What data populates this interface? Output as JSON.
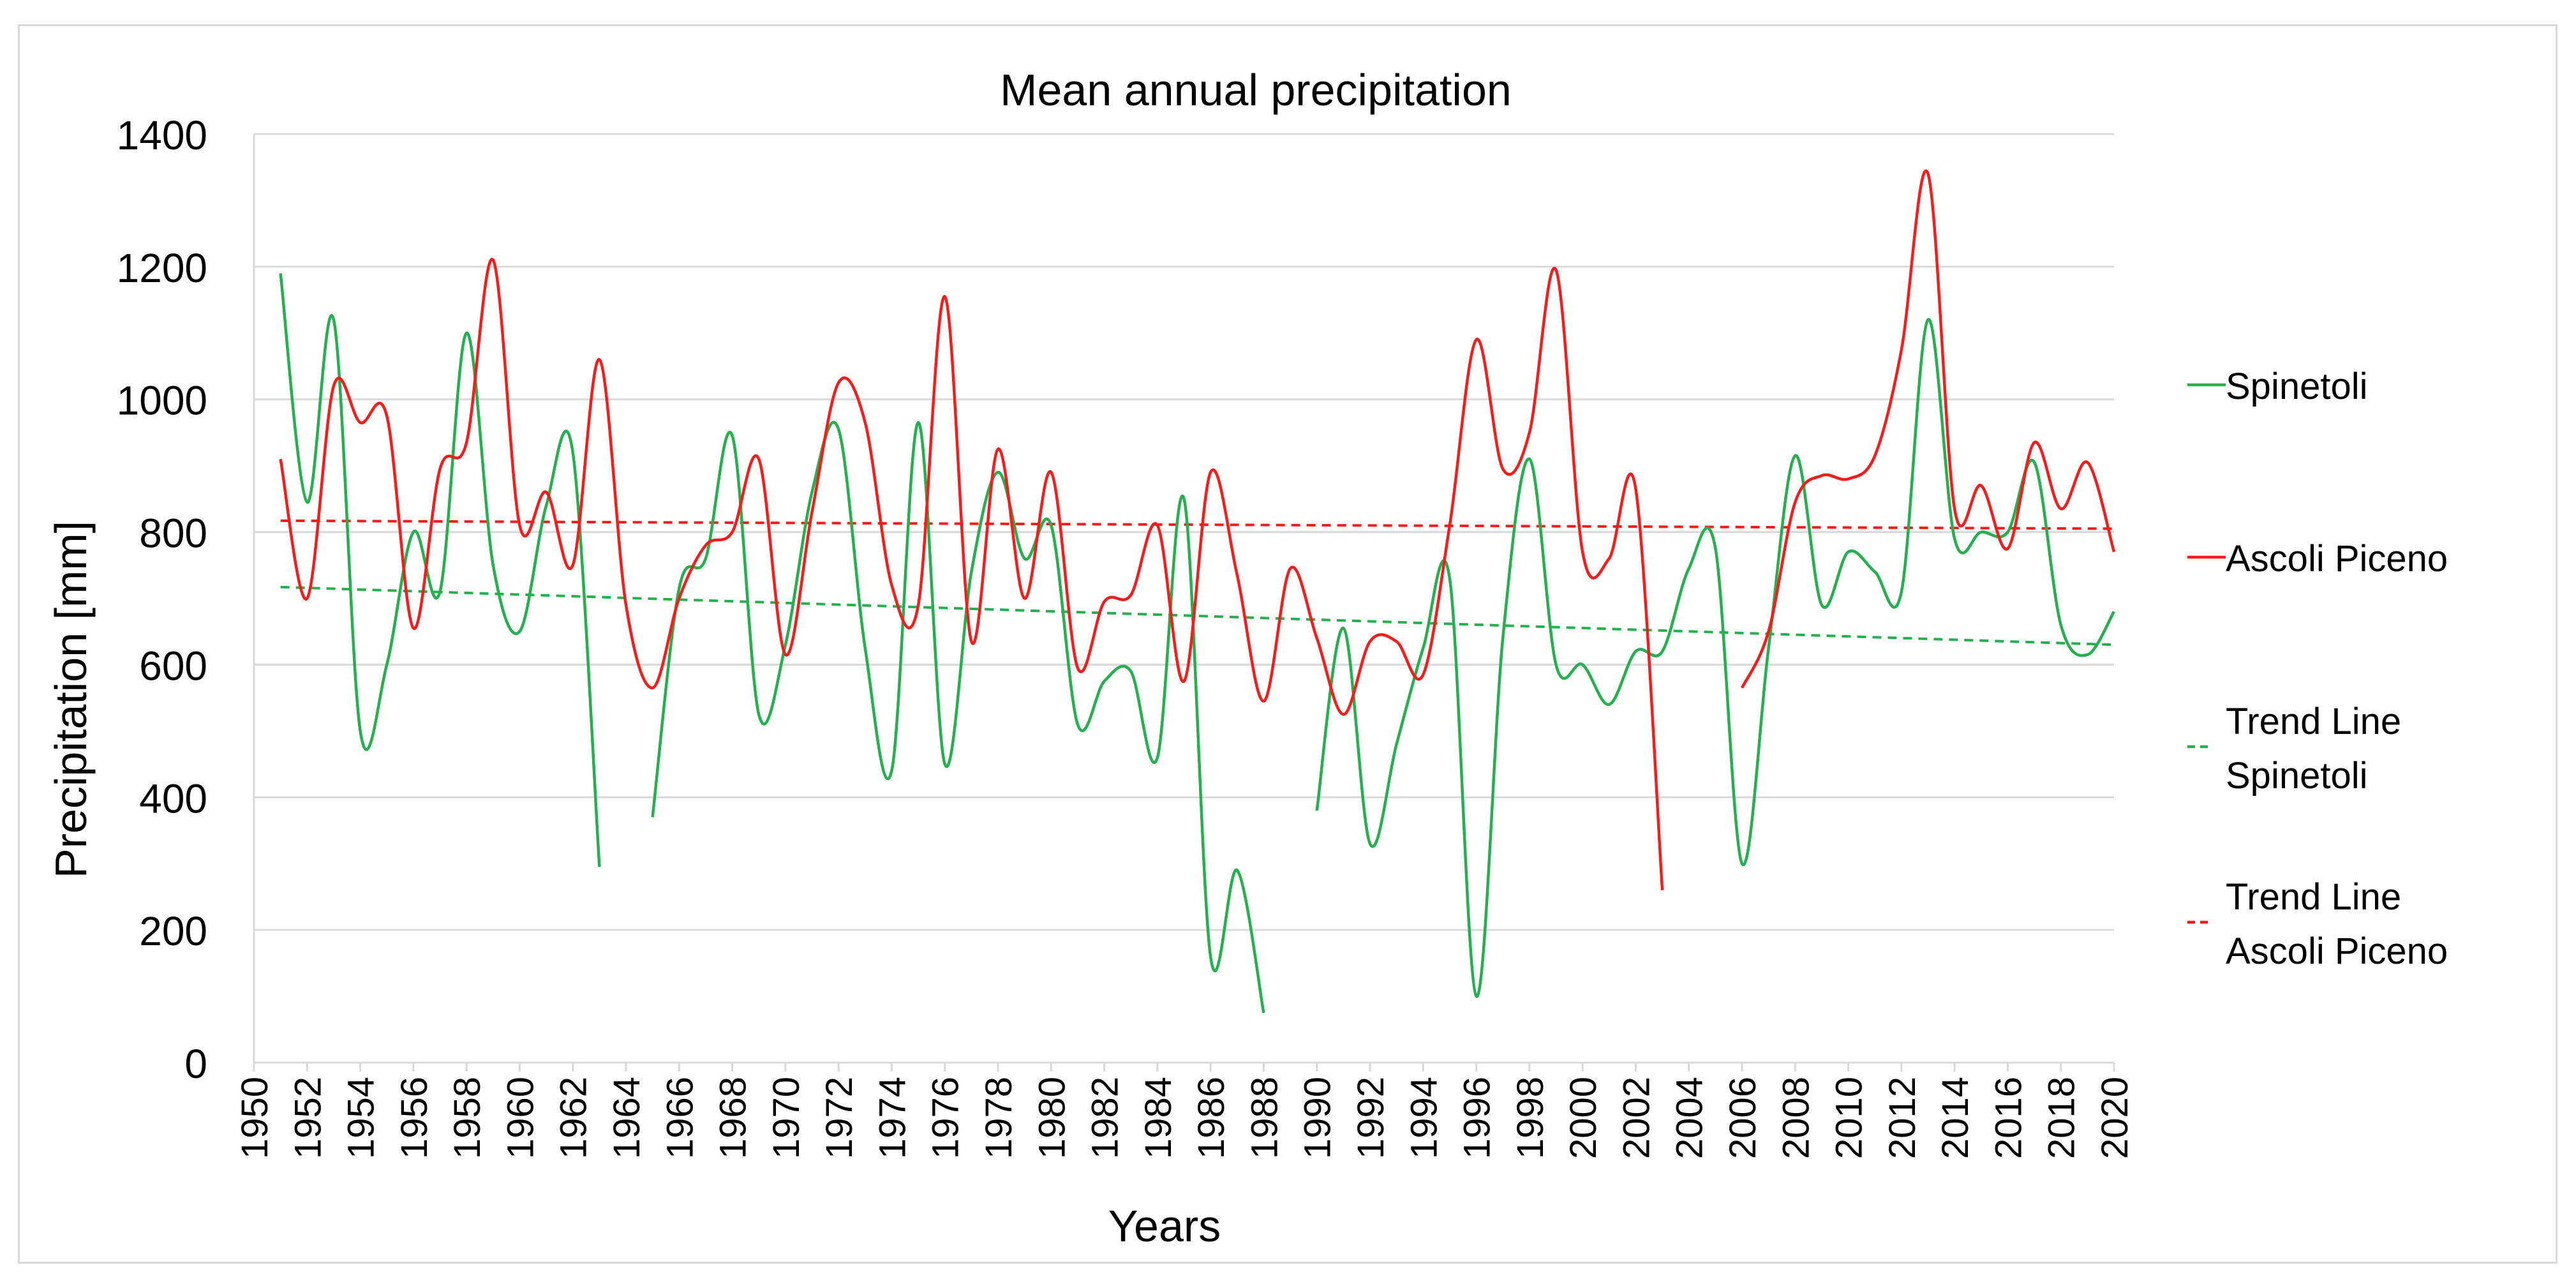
{
  "chart_data": {
    "type": "line",
    "title": "Mean annual precipitation",
    "xlabel": "Years",
    "ylabel": "Precipitation [mm]",
    "xlim": [
      1950,
      2020
    ],
    "ylim": [
      0,
      1400
    ],
    "x_ticks": [
      "1950",
      "1952",
      "1954",
      "1956",
      "1958",
      "1960",
      "1962",
      "1964",
      "1966",
      "1968",
      "1970",
      "1972",
      "1974",
      "1976",
      "1978",
      "1980",
      "1982",
      "1984",
      "1986",
      "1988",
      "1990",
      "1992",
      "1994",
      "1996",
      "1998",
      "2000",
      "2002",
      "2004",
      "2006",
      "2008",
      "2010",
      "2012",
      "2014",
      "2016",
      "2018",
      "2020"
    ],
    "y_ticks": [
      "0",
      "200",
      "400",
      "600",
      "800",
      "1000",
      "1200",
      "1400"
    ],
    "grid": "horizontal",
    "legend_position": "right",
    "series": [
      {
        "name": "Spinetoli",
        "color": "#22b14c",
        "style": "solid",
        "x": [
          1951,
          1952,
          1953,
          1954,
          1955,
          1956,
          1957,
          1958,
          1959,
          1960,
          1961,
          1962,
          1963,
          1964,
          1965,
          1966,
          1967,
          1968,
          1969,
          1970,
          1971,
          1972,
          1973,
          1974,
          1975,
          1976,
          1977,
          1978,
          1979,
          1980,
          1981,
          1982,
          1983,
          1984,
          1985,
          1986,
          1987,
          1988,
          1989,
          1990,
          1991,
          1992,
          1993,
          1994,
          1995,
          1996,
          1997,
          1998,
          1999,
          2000,
          2001,
          2002,
          2003,
          2004,
          2005,
          2006,
          2007,
          2008,
          2009,
          2010,
          2011,
          2012,
          2013,
          2014,
          2015,
          2016,
          2017,
          2018,
          2019,
          2020
        ],
        "values": [
          1190,
          845,
          1120,
          500,
          600,
          800,
          710,
          1100,
          750,
          650,
          840,
          920,
          295,
          null,
          370,
          715,
          760,
          945,
          525,
          630,
          860,
          955,
          625,
          440,
          965,
          450,
          740,
          890,
          760,
          810,
          510,
          575,
          590,
          460,
          850,
          160,
          290,
          75,
          null,
          380,
          655,
          330,
          480,
          625,
          730,
          100,
          640,
          910,
          600,
          600,
          540,
          620,
          620,
          745,
          775,
          300,
          625,
          915,
          690,
          770,
          740,
          710,
          1120,
          790,
          800,
          800,
          905,
          660,
          615,
          680
        ]
      },
      {
        "name": "Ascoli Piceno",
        "color": "#ff1a1a",
        "style": "solid",
        "x": [
          1951,
          1952,
          1953,
          1954,
          1955,
          1956,
          1957,
          1958,
          1959,
          1960,
          1961,
          1962,
          1963,
          1964,
          1965,
          1966,
          1967,
          1968,
          1969,
          1970,
          1971,
          1972,
          1973,
          1974,
          1975,
          1976,
          1977,
          1978,
          1979,
          1980,
          1981,
          1982,
          1983,
          1984,
          1985,
          1986,
          1987,
          1988,
          1989,
          1990,
          1991,
          1992,
          1993,
          1994,
          1995,
          1996,
          1997,
          1998,
          1999,
          2000,
          2001,
          2002,
          2003,
          2004,
          2005,
          2006,
          2007,
          2008,
          2009,
          2010,
          2011,
          2012,
          2013,
          2014,
          2015,
          2016,
          2017,
          2018,
          2019,
          2020
        ],
        "values": [
          910,
          700,
          1020,
          965,
          975,
          655,
          895,
          935,
          1210,
          810,
          860,
          750,
          1060,
          690,
          565,
          700,
          780,
          800,
          910,
          615,
          830,
          1025,
          965,
          720,
          690,
          1155,
          635,
          925,
          700,
          890,
          595,
          695,
          705,
          810,
          575,
          890,
          735,
          545,
          745,
          640,
          525,
          635,
          635,
          585,
          810,
          1090,
          895,
          950,
          1195,
          770,
          760,
          865,
          260,
          null,
          null,
          565,
          650,
          845,
          885,
          880,
          915,
          1075,
          1340,
          835,
          870,
          775,
          935,
          835,
          905,
          770
        ]
      },
      {
        "name": "Trend Line Spinetoli",
        "color": "#22b14c",
        "style": "dashed",
        "x": [
          1951,
          2020
        ],
        "values": [
          717,
          630
        ]
      },
      {
        "name": "Trend Line Ascoli Piceno",
        "color": "#ff1a1a",
        "style": "dashed",
        "x": [
          1951,
          2020
        ],
        "values": [
          817,
          805
        ]
      }
    ],
    "legend": [
      {
        "lines": [
          "Spinetoli"
        ]
      },
      {
        "lines": [
          "Ascoli Piceno"
        ]
      },
      {
        "lines": [
          "Trend Line",
          "Spinetoli"
        ]
      },
      {
        "lines": [
          "Trend Line",
          "Ascoli Piceno"
        ]
      }
    ]
  }
}
